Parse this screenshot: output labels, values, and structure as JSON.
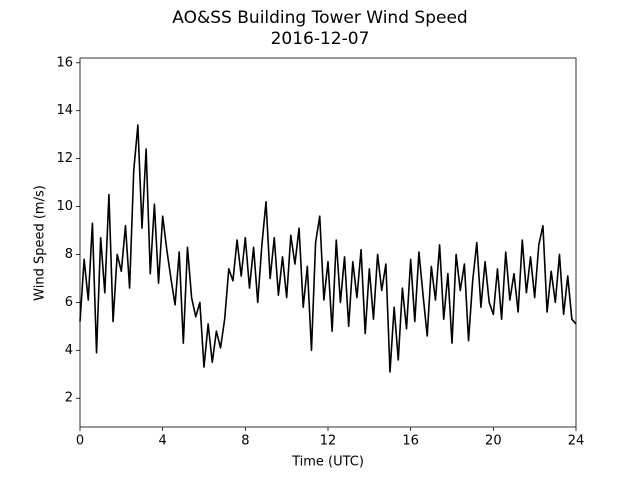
{
  "chart_data": {
    "type": "line",
    "title": "AO&SS Building Tower Wind Speed",
    "subtitle": "2016-12-07",
    "xlabel": "Time (UTC)",
    "ylabel": "Wind Speed (m/s)",
    "x": [
      0,
      0.2,
      0.4,
      0.6,
      0.8,
      1,
      1.2,
      1.4,
      1.6,
      1.8,
      2,
      2.2,
      2.4,
      2.6,
      2.8,
      3,
      3.2,
      3.4,
      3.6,
      3.8,
      4,
      4.2,
      4.4,
      4.6,
      4.8,
      5,
      5.2,
      5.4,
      5.6,
      5.8,
      6,
      6.2,
      6.4,
      6.6,
      6.8,
      7,
      7.2,
      7.4,
      7.6,
      7.8,
      8,
      8.2,
      8.4,
      8.6,
      8.8,
      9,
      9.2,
      9.4,
      9.6,
      9.8,
      10,
      10.2,
      10.4,
      10.6,
      10.8,
      11,
      11.2,
      11.4,
      11.6,
      11.8,
      12,
      12.2,
      12.4,
      12.6,
      12.8,
      13,
      13.2,
      13.4,
      13.6,
      13.8,
      14,
      14.2,
      14.4,
      14.6,
      14.8,
      15,
      15.2,
      15.4,
      15.6,
      15.8,
      16,
      16.2,
      16.4,
      16.6,
      16.8,
      17,
      17.2,
      17.4,
      17.6,
      17.8,
      18,
      18.2,
      18.4,
      18.6,
      18.8,
      19,
      19.2,
      19.4,
      19.6,
      19.8,
      20,
      20.2,
      20.4,
      20.6,
      20.8,
      21,
      21.2,
      21.4,
      21.6,
      21.8,
      22,
      22.2,
      22.4,
      22.6,
      22.8,
      23,
      23.2,
      23.4,
      23.6,
      23.8,
      24
    ],
    "series": [
      {
        "name": "Wind Speed",
        "color": "#000000",
        "values": [
          5.2,
          7.8,
          6.1,
          9.3,
          3.9,
          8.7,
          6.4,
          10.5,
          5.2,
          8.0,
          7.3,
          9.2,
          6.6,
          11.5,
          13.4,
          9.1,
          12.4,
          7.2,
          10.1,
          6.8,
          9.6,
          8.2,
          7.0,
          5.9,
          8.1,
          4.3,
          8.3,
          6.2,
          5.4,
          6.0,
          3.3,
          5.1,
          3.5,
          4.8,
          4.1,
          5.3,
          7.4,
          6.9,
          8.6,
          7.1,
          8.7,
          6.6,
          8.3,
          6.0,
          8.4,
          10.2,
          7.0,
          8.7,
          6.3,
          7.9,
          6.2,
          8.8,
          7.6,
          9.1,
          5.8,
          7.5,
          4.0,
          8.5,
          9.6,
          6.1,
          7.7,
          4.8,
          8.6,
          6.0,
          7.9,
          5.0,
          7.7,
          6.2,
          8.2,
          4.7,
          7.4,
          5.3,
          8.0,
          6.5,
          7.6,
          3.1,
          5.8,
          3.6,
          6.6,
          4.9,
          7.8,
          5.2,
          8.1,
          6.3,
          4.6,
          7.5,
          6.1,
          8.4,
          5.3,
          7.2,
          4.3,
          8.0,
          6.5,
          7.6,
          4.4,
          6.9,
          8.5,
          5.8,
          7.7,
          6.0,
          5.5,
          7.4,
          5.3,
          8.1,
          6.1,
          7.2,
          5.6,
          8.6,
          6.4,
          7.9,
          6.2,
          8.4,
          9.2,
          5.6,
          7.3,
          6.0,
          8.0,
          5.5,
          7.1,
          5.3,
          5.1
        ]
      }
    ],
    "xlim": [
      0,
      24
    ],
    "xticks": [
      0,
      4,
      8,
      12,
      16,
      20,
      24
    ],
    "ylim": [
      0.8,
      16.2
    ],
    "yticks": [
      2,
      4,
      6,
      8,
      10,
      12,
      14,
      16
    ],
    "grid": false
  }
}
